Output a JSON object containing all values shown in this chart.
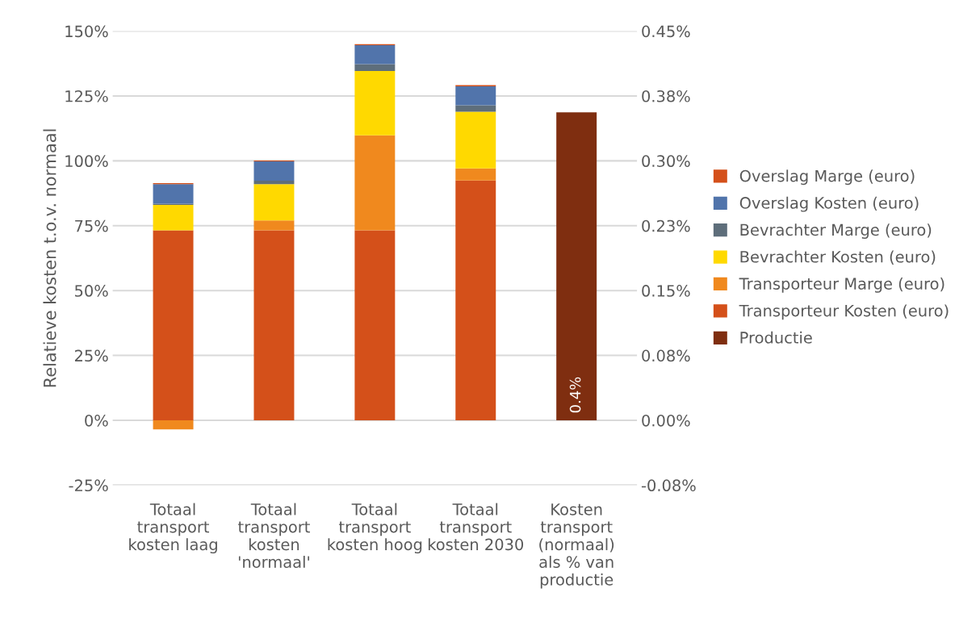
{
  "chart_data": {
    "type": "bar",
    "stacked": true,
    "ylabel": "Relatieve kosten t.o.v. normaal",
    "categories": [
      "Totaal\ntransport\nkosten laag",
      "Totaal\ntransport\nkosten\n'normaal'",
      "Totaal\ntransport\nkosten hoog",
      "Totaal\ntransport\nkosten 2030",
      "Kosten\ntransport\n(normaal)\nals % van\nproductie"
    ],
    "series": [
      {
        "name": "Transporteur Kosten (euro)",
        "color": "#d4501a",
        "values": [
          73.2,
          73.2,
          73.2,
          92.4,
          null
        ]
      },
      {
        "name": "Transporteur Marge (euro)",
        "color": "#f0891e",
        "values": [
          -3.5,
          3.8,
          36.6,
          4.7,
          null
        ]
      },
      {
        "name": "Bevrachter Kosten (euro)",
        "color": "#ffd900",
        "values": [
          9.8,
          14.0,
          24.8,
          21.8,
          null
        ]
      },
      {
        "name": "Bevrachter Marge (euro)",
        "color": "#5e6e7b",
        "values": [
          0.5,
          1.3,
          2.7,
          2.5,
          null
        ]
      },
      {
        "name": "Overslag Kosten (euro)",
        "color": "#5174ab",
        "values": [
          7.5,
          7.5,
          7.3,
          7.3,
          null
        ]
      },
      {
        "name": "Overslag Marge (euro)",
        "color": "#d4501a",
        "values": [
          0.4,
          0.3,
          0.4,
          0.5,
          null
        ]
      },
      {
        "name": "Productie",
        "color": "#7f2e10",
        "axis": "y2",
        "values": [
          null,
          null,
          null,
          null,
          0.356
        ],
        "value_labels": [
          null,
          null,
          null,
          null,
          "0.4%"
        ]
      }
    ],
    "ylim": [
      -25,
      150
    ],
    "yticks": [
      {
        "value": -25,
        "label": "-25%"
      },
      {
        "value": 0,
        "label": "0%"
      },
      {
        "value": 25,
        "label": "25%"
      },
      {
        "value": 50,
        "label": "50%"
      },
      {
        "value": 75,
        "label": "75%"
      },
      {
        "value": 100,
        "label": "100%"
      },
      {
        "value": 125,
        "label": "125%"
      },
      {
        "value": 150,
        "label": "150%"
      }
    ],
    "y2lim": [
      -0.075,
      0.45
    ],
    "y2ticks": [
      {
        "value": -0.075,
        "label": "-0.08%"
      },
      {
        "value": 0,
        "label": "0.00%"
      },
      {
        "value": 0.075,
        "label": "0.08%"
      },
      {
        "value": 0.15,
        "label": "0.15%"
      },
      {
        "value": 0.225,
        "label": "0.23%"
      },
      {
        "value": 0.3,
        "label": "0.30%"
      },
      {
        "value": 0.375,
        "label": "0.38%"
      },
      {
        "value": 0.45,
        "label": "0.45%"
      }
    ],
    "grid": "y",
    "legend": "right"
  }
}
